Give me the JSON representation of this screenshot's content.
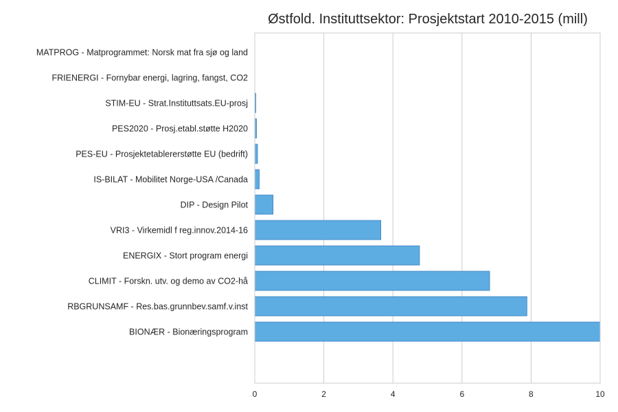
{
  "chart_data": {
    "type": "bar",
    "orientation": "horizontal",
    "title": "Østfold. Instituttsektor: Prosjektstart 2010-2015 (mill)",
    "xlabel": "",
    "ylabel": "",
    "xlim": [
      0,
      10
    ],
    "xticks": [
      0,
      2,
      4,
      6,
      8,
      10
    ],
    "grid": true,
    "bar_color": "#5dade2",
    "categories": [
      "MATPROG - Matprogrammet: Norsk mat fra sjø og land",
      "FRIENERGI - Fornybar energi, lagring, fangst, CO2",
      "STIM-EU - Strat.Instituttsats.EU-prosj",
      "PES2020 - Prosj.etabl.støtte H2020",
      "PES-EU - Prosjektetablererstøtte EU (bedrift)",
      "IS-BILAT - Mobilitet Norge-USA /Canada",
      "DIP - Design Pilot",
      "VRI3 - Virkemidl f reg.innov.2014-16",
      "ENERGIX - Stort program energi",
      "CLIMIT - Forskn. utv. og demo av CO2-hå",
      "RBGRUNSAMF - Res.bas.grunnbev.samf.v.inst",
      "BIONÆR - Bionæringsprogram"
    ],
    "values": [
      0.0,
      0.0,
      0.03,
      0.05,
      0.08,
      0.13,
      0.53,
      3.65,
      4.77,
      6.8,
      7.88,
      10.0
    ]
  }
}
